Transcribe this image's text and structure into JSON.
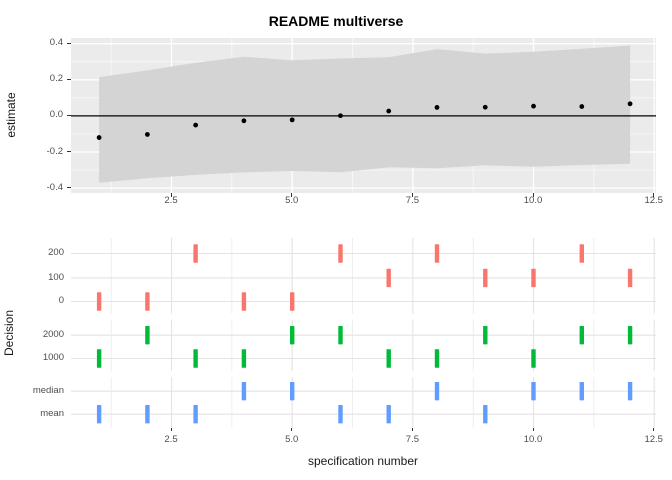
{
  "figure": {
    "title": "README multiverse",
    "background": "#FFFFFF"
  },
  "style": {
    "panel_bg_top": "#EBEBEB",
    "grid_top_major": "#FFFFFF",
    "grid_top_minor": "#F5F5F5",
    "ribbon_fill": "#D4D4D4",
    "point_color": "#000000",
    "zero_line_color": "#000000",
    "grid_bottom_major": "#E3E3E3",
    "grid_bottom_minor": "#ECECEC",
    "tick_text_color": "#4D4D4D",
    "axis_title_color": "#1A1A1A"
  },
  "chart_data": [
    {
      "type": "scatter",
      "title": "README multiverse",
      "xlabel": "",
      "ylabel": "estimate",
      "x": [
        1,
        2,
        3,
        4,
        5,
        6,
        7,
        8,
        9,
        10,
        11,
        12
      ],
      "estimates": [
        -0.12,
        -0.103,
        -0.051,
        -0.027,
        -0.022,
        0.001,
        0.027,
        0.047,
        0.048,
        0.054,
        0.052,
        0.067
      ],
      "ribbon_upper": [
        0.215,
        0.252,
        0.295,
        0.328,
        0.308,
        0.318,
        0.325,
        0.37,
        0.345,
        0.355,
        0.372,
        0.39
      ],
      "ribbon_lower": [
        -0.37,
        -0.345,
        -0.327,
        -0.313,
        -0.305,
        -0.312,
        -0.285,
        -0.29,
        -0.273,
        -0.282,
        -0.272,
        -0.265
      ],
      "zero_line": 0,
      "x_axis": {
        "ticks": [
          2.5,
          5.0,
          7.5,
          10.0,
          12.5
        ],
        "tick_labels": [
          "2.5",
          "5.0",
          "7.5",
          "10.0",
          "12.5"
        ],
        "minor": [
          1.25,
          3.75,
          6.25,
          8.75,
          11.25
        ],
        "range": [
          0.45,
          12.55
        ]
      },
      "y_axis": {
        "ticks": [
          0.4,
          0.2,
          0.0,
          -0.2,
          -0.4
        ],
        "tick_labels": [
          "0.4",
          "0.2",
          "0.0",
          "-0.2",
          "-0.4"
        ],
        "minor": [
          0.3,
          0.1,
          -0.1,
          -0.3
        ],
        "range": [
          -0.43,
          0.43
        ]
      },
      "grid": "white-on-gray",
      "legend": "none"
    },
    {
      "type": "scatter",
      "title": "",
      "xlabel": "specification number",
      "ylabel": "Decision",
      "x_axis": {
        "ticks": [
          2.5,
          5.0,
          7.5,
          10.0,
          12.5
        ],
        "tick_labels": [
          "2.5",
          "5.0",
          "7.5",
          "10.0",
          "12.5"
        ],
        "minor": [
          1.25,
          3.75,
          6.25,
          8.75,
          11.25
        ],
        "range": [
          0.45,
          12.55
        ]
      },
      "groups": [
        {
          "name": "boot-group",
          "color": "#F8766D",
          "rows": [
            {
              "label": "200",
              "specs": [
                3,
                6,
                8,
                11
              ]
            },
            {
              "label": "100",
              "specs": [
                7,
                9,
                10,
                12
              ]
            },
            {
              "label": "0",
              "specs": [
                1,
                2,
                4,
                5
              ]
            }
          ]
        },
        {
          "name": "sim-group",
          "color": "#00BA38",
          "rows": [
            {
              "label": "2000",
              "specs": [
                2,
                5,
                6,
                9,
                11,
                12
              ]
            },
            {
              "label": "1000",
              "specs": [
                1,
                3,
                4,
                7,
                8,
                10
              ]
            }
          ]
        },
        {
          "name": "summary-group",
          "color": "#619CFF",
          "rows": [
            {
              "label": "median",
              "specs": [
                4,
                5,
                8,
                10,
                11,
                12
              ]
            },
            {
              "label": "mean",
              "specs": [
                1,
                2,
                3,
                6,
                7,
                9
              ]
            }
          ]
        }
      ],
      "grid": "gray-on-white",
      "legend": "none"
    }
  ]
}
